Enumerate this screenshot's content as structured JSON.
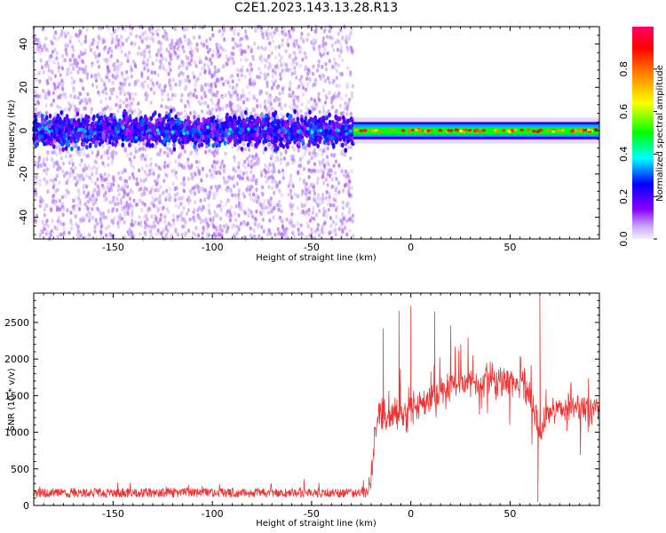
{
  "title": "C2E1.2023.143.13.28.R13",
  "chart_data": [
    {
      "type": "heatmap",
      "xlabel": "Height of straight line (km)",
      "ylabel": "Frequency (Hz)",
      "xlim": [
        -190,
        95
      ],
      "ylim": [
        -50,
        48
      ],
      "xticks": [
        -150,
        -100,
        -50,
        0,
        50
      ],
      "yticks": [
        -40,
        -20,
        0,
        20,
        40
      ],
      "regions": [
        {
          "x_range": [
            -190,
            -29
          ],
          "frequency_band_hz": [
            -50,
            48
          ],
          "dense_core_hz": [
            -8,
            8
          ],
          "typical_amplitude": [
            0.05,
            0.4
          ]
        },
        {
          "x_range": [
            -29,
            95
          ],
          "frequency_band_hz": [
            -5,
            5
          ],
          "dense_core_hz": [
            -2,
            2
          ],
          "typical_amplitude": [
            0.4,
            1.0
          ]
        }
      ],
      "colorbar": {
        "label": "Normalized spectral amplitude",
        "range": [
          0,
          1
        ],
        "ticks": [
          "0.0",
          "0.2",
          "0.4",
          "0.6",
          "0.8"
        ],
        "colors": [
          "#f4eefc",
          "#8b00ff",
          "#0000ff",
          "#00ffff",
          "#00ff00",
          "#ffff00",
          "#ff7f00",
          "#ff0000",
          "#ff0066"
        ]
      }
    },
    {
      "type": "line",
      "xlabel": "Height of straight line (km)",
      "ylabel": "SNR (10 * v/v)",
      "xlim": [
        -190,
        95
      ],
      "ylim": [
        0,
        2900
      ],
      "xticks": [
        -150,
        -100,
        -50,
        0,
        50
      ],
      "yticks": [
        0,
        500,
        1000,
        1500,
        2000,
        2500
      ],
      "color": "#ee3333",
      "series_profile": {
        "x": [
          -190,
          -110,
          -60,
          -22,
          -20,
          -18,
          -15,
          0,
          10,
          20,
          40,
          55,
          60,
          65,
          70,
          80,
          95
        ],
        "y": [
          170,
          175,
          170,
          170,
          300,
          1100,
          1200,
          1300,
          1400,
          1650,
          1750,
          1700,
          1500,
          1000,
          1300,
          1350,
          1300
        ]
      },
      "peaks": [
        {
          "x": -14,
          "y": 2420
        },
        {
          "x": -6,
          "y": 2660
        },
        {
          "x": 0,
          "y": 2720
        },
        {
          "x": 12,
          "y": 2650
        },
        {
          "x": 65,
          "y": 2900
        },
        {
          "x": 64,
          "y": 50
        }
      ]
    }
  ]
}
